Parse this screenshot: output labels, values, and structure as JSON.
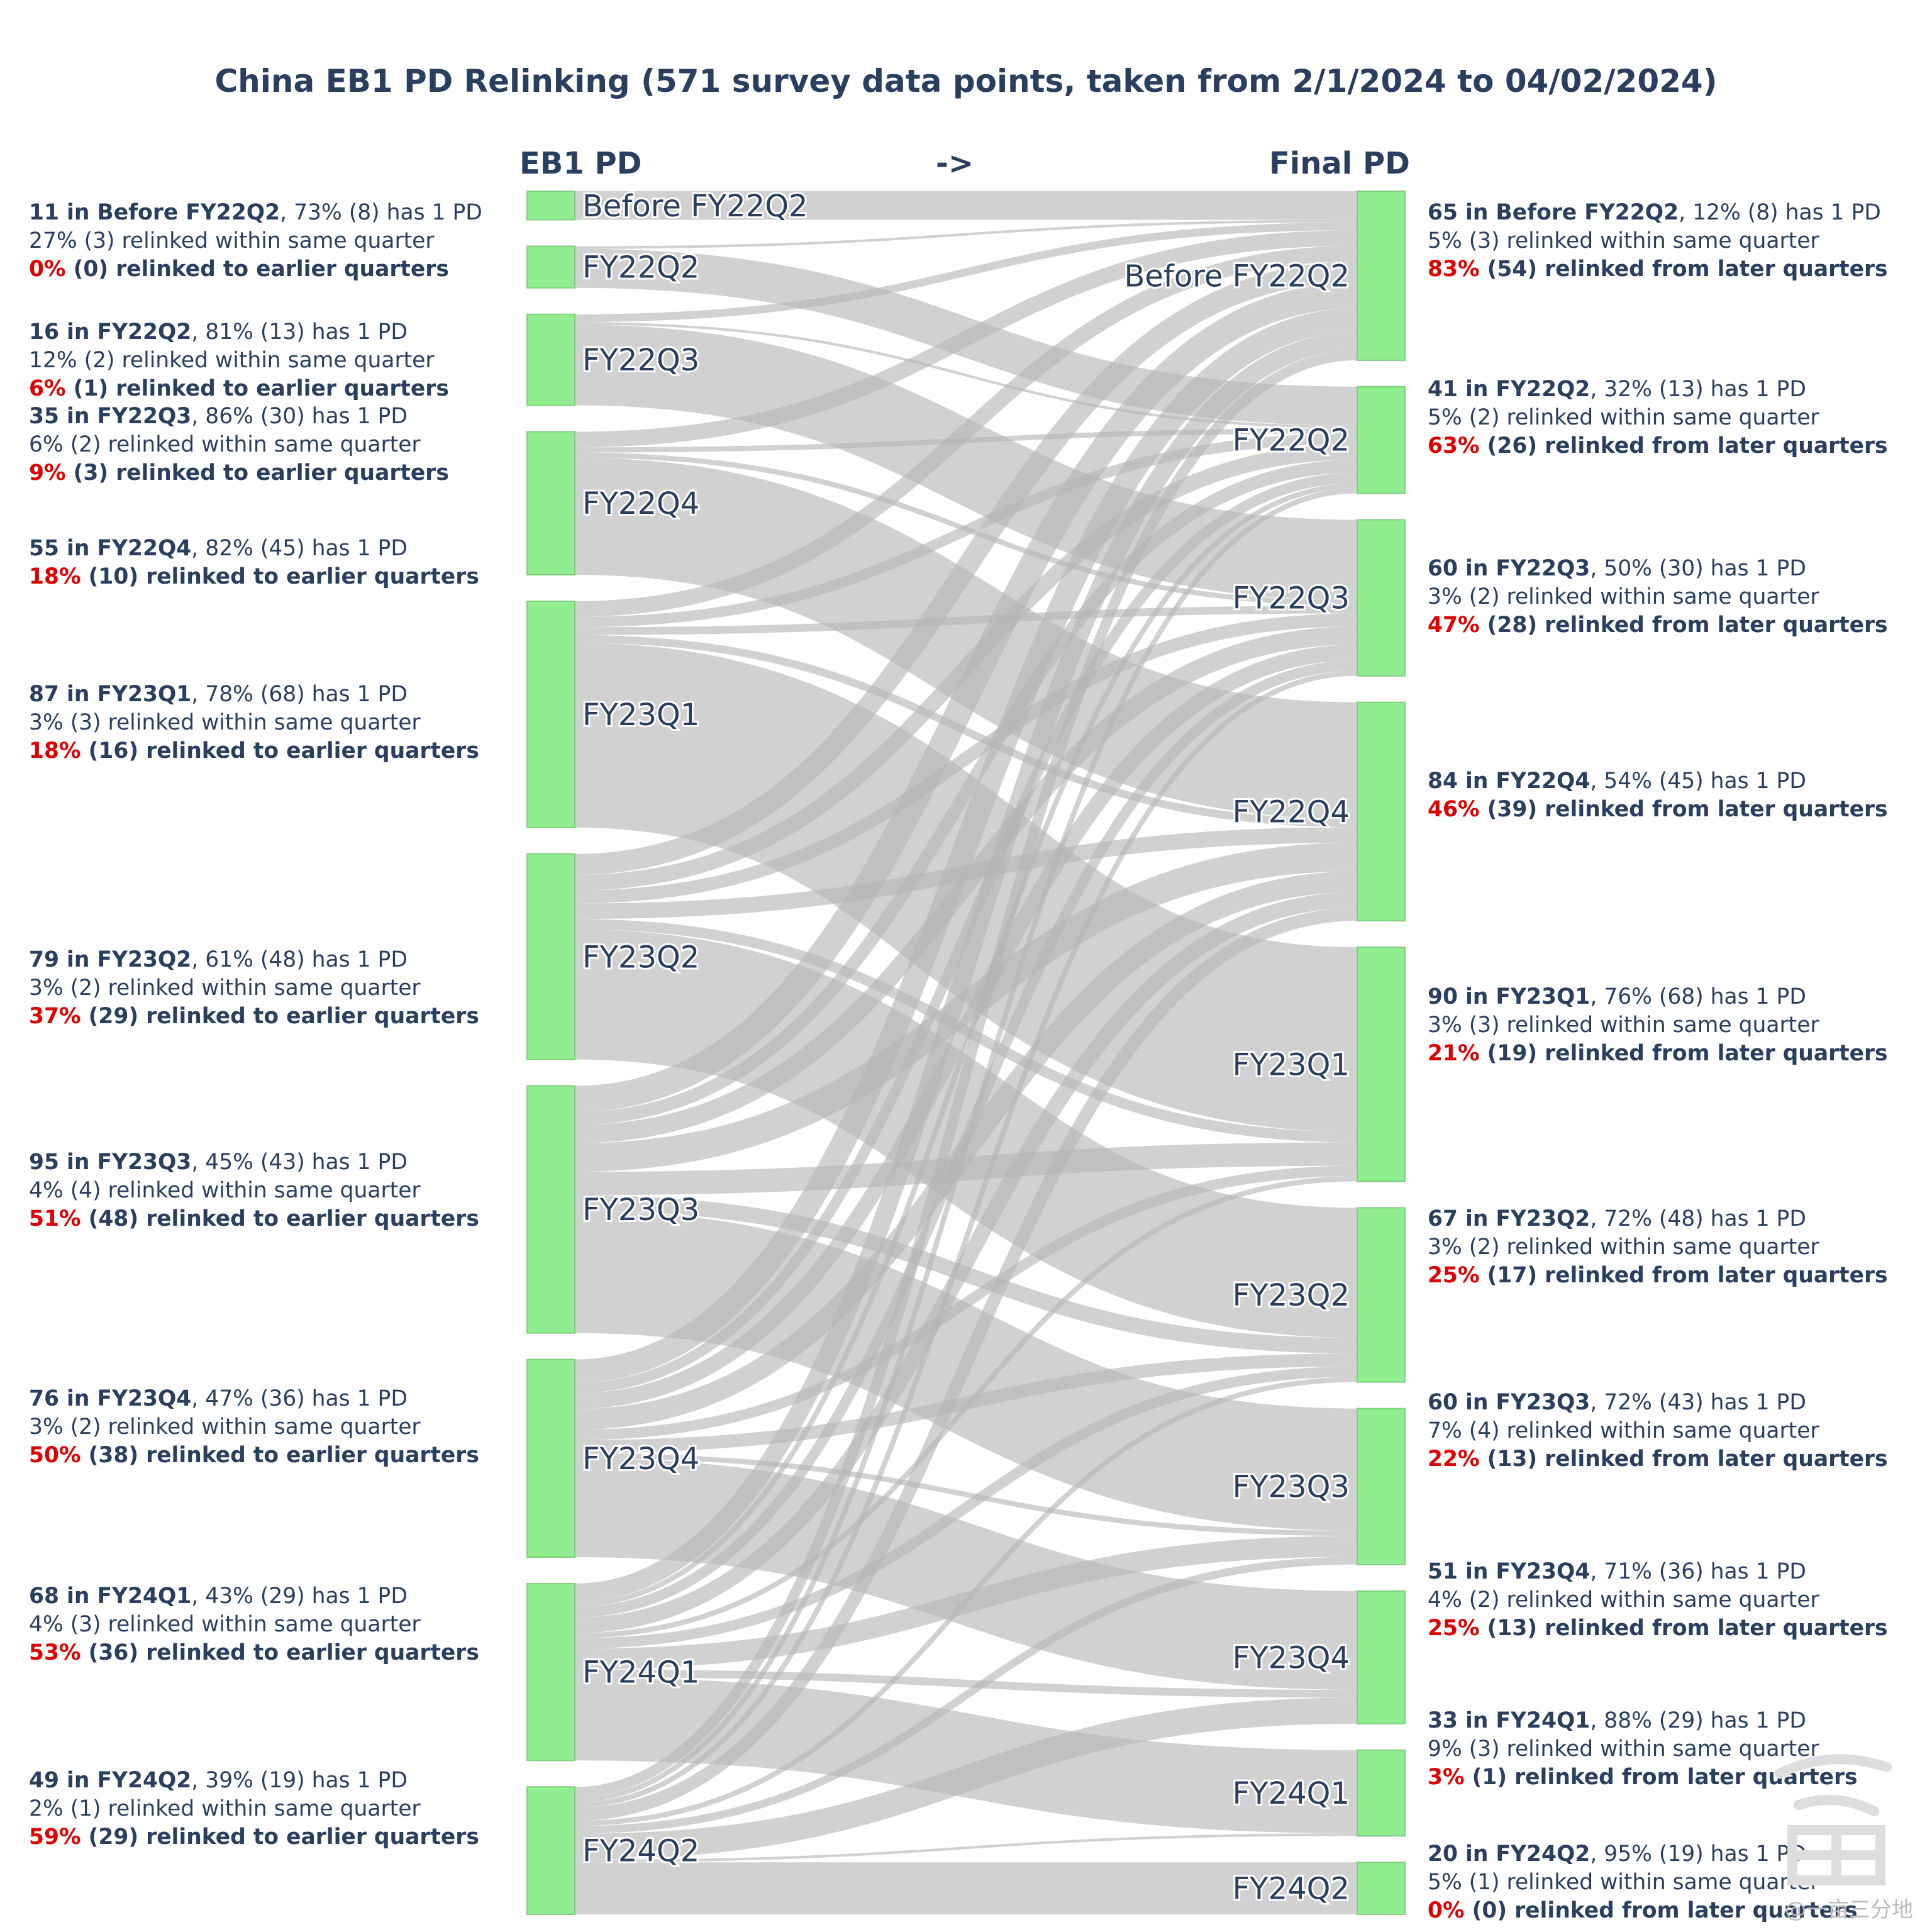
{
  "header": {
    "title": "China EB1 PD Relinking (571 survey data points, taken from 2/1/2024 to 04/02/2024)",
    "left_column": "EB1 PD",
    "arrow": "->",
    "right_column": "Final PD"
  },
  "watermark": "@一亩三分地",
  "chart_data": {
    "type": "sankey",
    "title": "China EB1 PD Relinking (571 survey data points, taken from 2/1/2024 to 04/02/2024)",
    "source_axis_label": "EB1 PD",
    "target_axis_label": "Final PD",
    "source_nodes": [
      {
        "label": "Before FY22Q2",
        "value": 11
      },
      {
        "label": "FY22Q2",
        "value": 16
      },
      {
        "label": "FY22Q3",
        "value": 35
      },
      {
        "label": "FY22Q4",
        "value": 55
      },
      {
        "label": "FY23Q1",
        "value": 87
      },
      {
        "label": "FY23Q2",
        "value": 79
      },
      {
        "label": "FY23Q3",
        "value": 95
      },
      {
        "label": "FY23Q4",
        "value": 76
      },
      {
        "label": "FY24Q1",
        "value": 68
      },
      {
        "label": "FY24Q2",
        "value": 49
      }
    ],
    "target_nodes": [
      {
        "label": "Before FY22Q2",
        "value": 65
      },
      {
        "label": "FY22Q2",
        "value": 41
      },
      {
        "label": "FY22Q3",
        "value": 60
      },
      {
        "label": "FY22Q4",
        "value": 84
      },
      {
        "label": "FY23Q1",
        "value": 90
      },
      {
        "label": "FY23Q2",
        "value": 67
      },
      {
        "label": "FY23Q3",
        "value": 60
      },
      {
        "label": "FY23Q4",
        "value": 51
      },
      {
        "label": "FY24Q1",
        "value": 33
      },
      {
        "label": "FY24Q2",
        "value": 20
      }
    ],
    "links": [
      {
        "source": 0,
        "target": 0,
        "value": 11
      },
      {
        "source": 1,
        "target": 0,
        "value": 1
      },
      {
        "source": 1,
        "target": 1,
        "value": 15
      },
      {
        "source": 2,
        "target": 0,
        "value": 3
      },
      {
        "source": 2,
        "target": 1,
        "value": 1
      },
      {
        "source": 2,
        "target": 2,
        "value": 31
      },
      {
        "source": 3,
        "target": 0,
        "value": 6
      },
      {
        "source": 3,
        "target": 1,
        "value": 2
      },
      {
        "source": 3,
        "target": 2,
        "value": 2
      },
      {
        "source": 3,
        "target": 3,
        "value": 45
      },
      {
        "source": 4,
        "target": 0,
        "value": 6
      },
      {
        "source": 4,
        "target": 1,
        "value": 4
      },
      {
        "source": 4,
        "target": 2,
        "value": 3
      },
      {
        "source": 4,
        "target": 3,
        "value": 3
      },
      {
        "source": 4,
        "target": 4,
        "value": 71
      },
      {
        "source": 5,
        "target": 0,
        "value": 8
      },
      {
        "source": 5,
        "target": 1,
        "value": 6
      },
      {
        "source": 5,
        "target": 2,
        "value": 5
      },
      {
        "source": 5,
        "target": 3,
        "value": 6
      },
      {
        "source": 5,
        "target": 4,
        "value": 4
      },
      {
        "source": 5,
        "target": 5,
        "value": 50
      },
      {
        "source": 6,
        "target": 0,
        "value": 10
      },
      {
        "source": 6,
        "target": 1,
        "value": 5
      },
      {
        "source": 6,
        "target": 2,
        "value": 7
      },
      {
        "source": 6,
        "target": 3,
        "value": 11
      },
      {
        "source": 6,
        "target": 4,
        "value": 9
      },
      {
        "source": 6,
        "target": 5,
        "value": 6
      },
      {
        "source": 6,
        "target": 6,
        "value": 47
      },
      {
        "source": 7,
        "target": 0,
        "value": 9
      },
      {
        "source": 7,
        "target": 1,
        "value": 4
      },
      {
        "source": 7,
        "target": 2,
        "value": 6
      },
      {
        "source": 7,
        "target": 3,
        "value": 8
      },
      {
        "source": 7,
        "target": 4,
        "value": 4
      },
      {
        "source": 7,
        "target": 5,
        "value": 5
      },
      {
        "source": 7,
        "target": 6,
        "value": 2
      },
      {
        "source": 7,
        "target": 7,
        "value": 38
      },
      {
        "source": 8,
        "target": 0,
        "value": 7
      },
      {
        "source": 8,
        "target": 1,
        "value": 2
      },
      {
        "source": 8,
        "target": 2,
        "value": 4
      },
      {
        "source": 8,
        "target": 3,
        "value": 6
      },
      {
        "source": 8,
        "target": 4,
        "value": 2
      },
      {
        "source": 8,
        "target": 5,
        "value": 4
      },
      {
        "source": 8,
        "target": 6,
        "value": 8
      },
      {
        "source": 8,
        "target": 7,
        "value": 3
      },
      {
        "source": 8,
        "target": 8,
        "value": 32
      },
      {
        "source": 9,
        "target": 0,
        "value": 4
      },
      {
        "source": 9,
        "target": 1,
        "value": 2
      },
      {
        "source": 9,
        "target": 2,
        "value": 2
      },
      {
        "source": 9,
        "target": 3,
        "value": 5
      },
      {
        "source": 9,
        "target": 5,
        "value": 2
      },
      {
        "source": 9,
        "target": 6,
        "value": 3
      },
      {
        "source": 9,
        "target": 7,
        "value": 10
      },
      {
        "source": 9,
        "target": 8,
        "value": 1
      },
      {
        "source": 9,
        "target": 9,
        "value": 20
      }
    ]
  },
  "left_notes": [
    {
      "count": "11 in Before FY22Q2",
      "one_pd": ", 73% (8) has 1 PD",
      "same_q": "27% (3) relinked within same quarter",
      "pct": "0%",
      "relink": " (0) relinked to earlier quarters"
    },
    {
      "count": "16 in FY22Q2",
      "one_pd": ", 81% (13) has 1 PD",
      "same_q": "12% (2) relinked within same quarter",
      "pct": "6%",
      "relink": " (1) relinked to earlier quarters"
    },
    {
      "count": "35 in FY22Q3",
      "one_pd": ", 86% (30) has 1 PD",
      "same_q": "6% (2) relinked within same quarter",
      "pct": "9%",
      "relink": " (3) relinked to earlier quarters"
    },
    {
      "count": "55 in FY22Q4",
      "one_pd": ", 82% (45) has 1 PD",
      "same_q": "",
      "pct": "18%",
      "relink": " (10) relinked to earlier quarters"
    },
    {
      "count": "87 in FY23Q1",
      "one_pd": ", 78% (68) has 1 PD",
      "same_q": "3% (3) relinked within same quarter",
      "pct": "18%",
      "relink": " (16) relinked to earlier quarters"
    },
    {
      "count": "79 in FY23Q2",
      "one_pd": ", 61% (48) has 1 PD",
      "same_q": "3% (2) relinked within same quarter",
      "pct": "37%",
      "relink": " (29) relinked to earlier quarters"
    },
    {
      "count": "95 in FY23Q3",
      "one_pd": ", 45% (43) has 1 PD",
      "same_q": "4% (4) relinked within same quarter",
      "pct": "51%",
      "relink": " (48) relinked to earlier quarters"
    },
    {
      "count": "76 in FY23Q4",
      "one_pd": ", 47% (36) has 1 PD",
      "same_q": "3% (2) relinked within same quarter",
      "pct": "50%",
      "relink": " (38) relinked to earlier quarters"
    },
    {
      "count": "68 in FY24Q1",
      "one_pd": ", 43% (29) has 1 PD",
      "same_q": "4% (3) relinked within same quarter",
      "pct": "53%",
      "relink": " (36) relinked to earlier quarters"
    },
    {
      "count": "49 in FY24Q2",
      "one_pd": ", 39% (19) has 1 PD",
      "same_q": "2% (1) relinked within same quarter",
      "pct": "59%",
      "relink": " (29) relinked to earlier quarters"
    }
  ],
  "right_notes": [
    {
      "count": "65 in Before FY22Q2",
      "one_pd": ", 12% (8) has 1 PD",
      "same_q": "5% (3) relinked within same quarter",
      "pct": "83%",
      "relink": " (54) relinked from later quarters"
    },
    {
      "count": "41 in FY22Q2",
      "one_pd": ", 32% (13) has 1 PD",
      "same_q": "5% (2) relinked within same quarter",
      "pct": "63%",
      "relink": " (26) relinked from later quarters"
    },
    {
      "count": "60 in FY22Q3",
      "one_pd": ", 50% (30) has 1 PD",
      "same_q": "3% (2) relinked within same quarter",
      "pct": "47%",
      "relink": " (28) relinked from later quarters"
    },
    {
      "count": "84 in FY22Q4",
      "one_pd": ", 54% (45) has 1 PD",
      "same_q": "",
      "pct": "46%",
      "relink": " (39) relinked from later quarters"
    },
    {
      "count": "90 in FY23Q1",
      "one_pd": ", 76% (68) has 1 PD",
      "same_q": "3% (3) relinked within same quarter",
      "pct": "21%",
      "relink": " (19) relinked from later quarters"
    },
    {
      "count": "67 in FY23Q2",
      "one_pd": ", 72% (48) has 1 PD",
      "same_q": "3% (2) relinked within same quarter",
      "pct": "25%",
      "relink": " (17) relinked from later quarters"
    },
    {
      "count": "60 in FY23Q3",
      "one_pd": ", 72% (43) has 1 PD",
      "same_q": "7% (4) relinked within same quarter",
      "pct": "22%",
      "relink": " (13) relinked from later quarters"
    },
    {
      "count": "51 in FY23Q4",
      "one_pd": ", 71% (36) has 1 PD",
      "same_q": "4% (2) relinked within same quarter",
      "pct": "25%",
      "relink": " (13) relinked from later quarters"
    },
    {
      "count": "33 in FY24Q1",
      "one_pd": ", 88% (29) has 1 PD",
      "same_q": "9% (3) relinked within same quarter",
      "pct": "3%",
      "relink": " (1) relinked from later quarters"
    },
    {
      "count": "20 in FY24Q2",
      "one_pd": ", 95% (19) has 1 PD",
      "same_q": "5% (1) relinked within same quarter",
      "pct": "0%",
      "relink": " (0) relinked from later quarters"
    }
  ],
  "colors": {
    "node": "#90ee90",
    "node_border": "#7fcf7f",
    "link": "#b4b4b4",
    "text": "#2a3f5f",
    "highlight": "#e00000"
  }
}
